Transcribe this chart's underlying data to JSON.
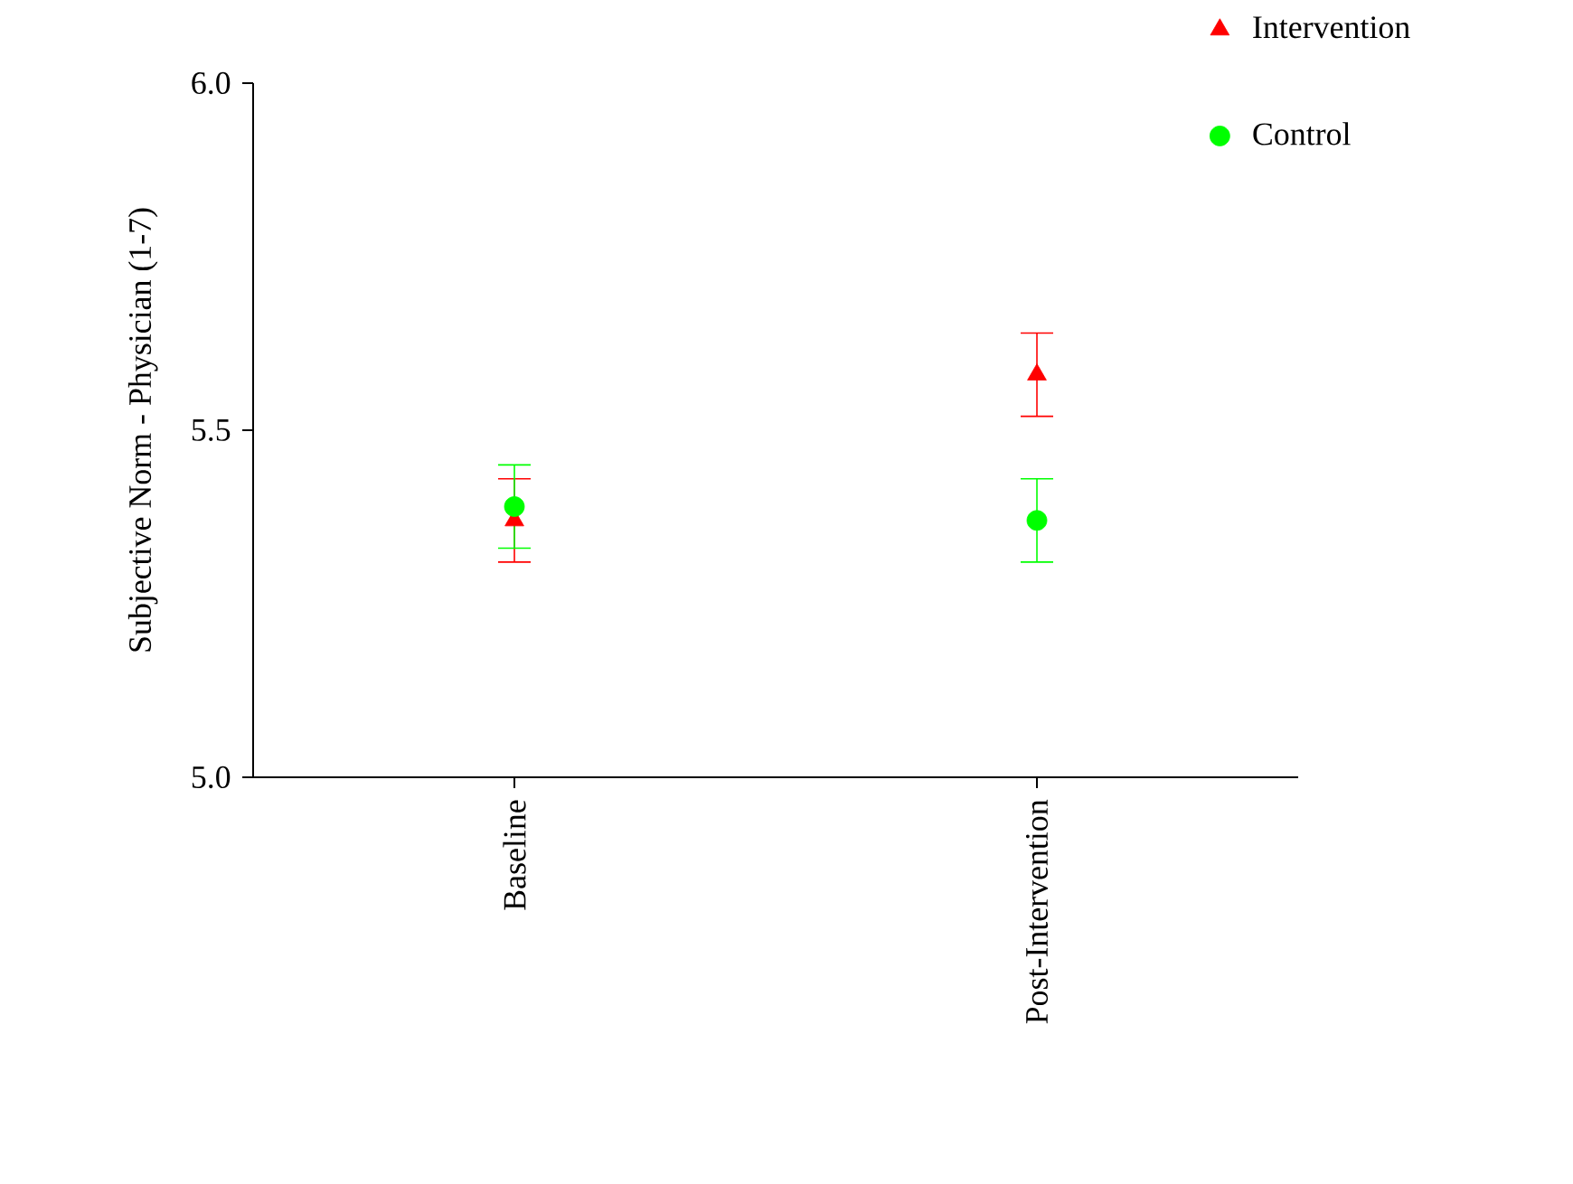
{
  "chart_data": {
    "type": "scatter",
    "ylabel": "Subjective Norm - Physician (1-7)",
    "categories": [
      "Baseline",
      "Post-Intervention"
    ],
    "ylim": [
      5.0,
      6.0
    ],
    "yticks": [
      {
        "value": 5.0,
        "label": "5.0"
      },
      {
        "value": 5.5,
        "label": "5.5"
      },
      {
        "value": 6.0,
        "label": "6.0"
      }
    ],
    "legend": "top right",
    "grid": false,
    "series": [
      {
        "name": "Intervention",
        "color": "#ff0000",
        "marker": "triangle",
        "values": [
          5.37,
          5.58
        ],
        "errors": [
          0.06,
          0.06
        ]
      },
      {
        "name": "Control",
        "color": "#00ff00",
        "marker": "circle",
        "values": [
          5.39,
          5.37
        ],
        "errors": [
          0.06,
          0.06
        ]
      }
    ]
  }
}
